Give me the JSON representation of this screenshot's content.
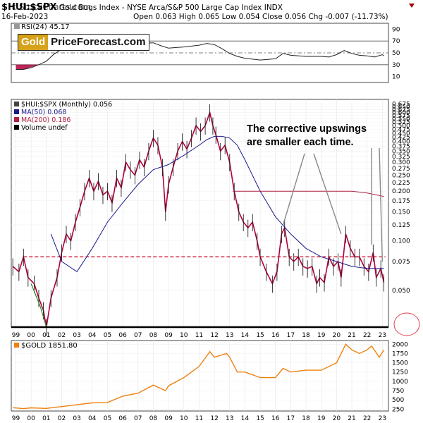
{
  "watermark_top": "©StockCharts.com",
  "header": {
    "symbol": "$HUI:$SPX",
    "description": "Gold Bugs Index - NYSE Arca/S&P 500 Large Cap Index  INDX",
    "date": "16-Feb-2023",
    "ohlc": "Open 0.063  High 0.065  Low 0.054  Close 0.056  Chg -0.007 (-11.73%)"
  },
  "logo": {
    "gold": "Gold",
    "rest": "PriceForecast.com"
  },
  "annotation": {
    "line1": "The corrective upswings",
    "line2": "are smaller each time."
  },
  "colors": {
    "price": "#b0003a",
    "ma50": "#1a1a8c",
    "ma200": "#b02040",
    "rsi": "#222222",
    "gold": "#ef7f0f",
    "support": "#c8102e",
    "circle": "#e04050"
  },
  "chart_data": [
    {
      "type": "line",
      "panel": "RSI",
      "legend": "RSI(24) 45.17",
      "y_ticks": [
        10,
        30,
        50,
        70,
        90
      ],
      "ylim": [
        0,
        100
      ],
      "reference_lines": [
        30,
        50,
        70
      ],
      "x": [
        1999.0,
        1999.5,
        2000.0,
        2000.5,
        2001.0,
        2001.5,
        2002.0,
        2002.5,
        2003.0,
        2004.0,
        2005.0,
        2006.0,
        2007.0,
        2008.0,
        2008.5,
        2009.0,
        2010.0,
        2011.0,
        2011.5,
        2012.0,
        2012.5,
        2013.0,
        2013.5,
        2014.0,
        2015.0,
        2016.0,
        2016.5,
        2017.0,
        2018.0,
        2019.0,
        2019.5,
        2020.0,
        2020.5,
        2021.0,
        2021.5,
        2022.0,
        2022.5,
        2023.0,
        2023.1
      ],
      "values": [
        22,
        22,
        25,
        30,
        36,
        48,
        56,
        60,
        63,
        64,
        62,
        64,
        66,
        67,
        62,
        58,
        60,
        63,
        66,
        64,
        57,
        49,
        44,
        41,
        38,
        40,
        49,
        46,
        44,
        44,
        43,
        47,
        54,
        49,
        46,
        45,
        43,
        47,
        45
      ]
    },
    {
      "type": "line",
      "panel": "main",
      "title": "$HUI:$SPX (Monthly) 0.056",
      "yscale": "log",
      "ylim": [
        0.03,
        0.72
      ],
      "y_ticks": [
        0.05,
        0.075,
        0.1,
        0.125,
        0.15,
        0.175,
        0.2,
        0.225,
        0.25,
        0.275,
        0.3,
        0.325,
        0.35,
        0.375,
        0.4,
        0.425,
        0.45,
        0.475,
        0.5,
        0.525,
        0.55,
        0.575,
        0.6,
        0.625,
        0.65,
        0.675
      ],
      "x_ticks": [
        "99",
        "00",
        "01",
        "02",
        "03",
        "04",
        "05",
        "06",
        "07",
        "08",
        "09",
        "10",
        "11",
        "12",
        "13",
        "14",
        "15",
        "16",
        "17",
        "18",
        "19",
        "20",
        "21",
        "22",
        "23"
      ],
      "xlim": [
        1998.7,
        2023.4
      ],
      "legend": [
        "$HUI:$SPX (Monthly) 0.056",
        "MA(50) 0.068",
        "MA(200) 0.186",
        "Volume undef"
      ],
      "series": [
        {
          "name": "$HUI:$SPX",
          "x": [
            1998.8,
            1999.2,
            1999.5,
            1999.8,
            2000.2,
            2000.5,
            2000.8,
            2001.0,
            2001.3,
            2001.7,
            2002.0,
            2002.3,
            2002.6,
            2002.9,
            2003.2,
            2003.5,
            2003.8,
            2004.1,
            2004.4,
            2004.7,
            2005.0,
            2005.3,
            2005.6,
            2005.9,
            2006.2,
            2006.5,
            2006.8,
            2007.1,
            2007.4,
            2007.7,
            2008.0,
            2008.3,
            2008.6,
            2008.8,
            2009.0,
            2009.3,
            2009.6,
            2009.9,
            2010.2,
            2010.5,
            2010.8,
            2011.1,
            2011.4,
            2011.7,
            2011.9,
            2012.1,
            2012.4,
            2012.7,
            2013.0,
            2013.3,
            2013.6,
            2013.9,
            2014.2,
            2014.5,
            2014.8,
            2015.0,
            2015.4,
            2015.8,
            2016.1,
            2016.4,
            2016.6,
            2016.9,
            2017.2,
            2017.5,
            2017.8,
            2018.1,
            2018.4,
            2018.7,
            2018.9,
            2019.2,
            2019.5,
            2019.8,
            2020.1,
            2020.3,
            2020.6,
            2020.9,
            2021.2,
            2021.5,
            2021.8,
            2022.1,
            2022.4,
            2022.6,
            2022.9,
            2023.1
          ],
          "values": [
            0.07,
            0.065,
            0.08,
            0.06,
            0.055,
            0.045,
            0.038,
            0.03,
            0.045,
            0.06,
            0.085,
            0.11,
            0.1,
            0.13,
            0.16,
            0.2,
            0.24,
            0.2,
            0.23,
            0.19,
            0.2,
            0.17,
            0.24,
            0.21,
            0.3,
            0.27,
            0.25,
            0.31,
            0.28,
            0.35,
            0.42,
            0.38,
            0.28,
            0.15,
            0.22,
            0.28,
            0.35,
            0.4,
            0.36,
            0.42,
            0.5,
            0.46,
            0.5,
            0.6,
            0.5,
            0.44,
            0.35,
            0.38,
            0.3,
            0.2,
            0.15,
            0.13,
            0.12,
            0.13,
            0.1,
            0.08,
            0.065,
            0.055,
            0.065,
            0.11,
            0.12,
            0.08,
            0.075,
            0.08,
            0.07,
            0.068,
            0.07,
            0.055,
            0.06,
            0.056,
            0.08,
            0.07,
            0.075,
            0.06,
            0.11,
            0.09,
            0.08,
            0.08,
            0.07,
            0.065,
            0.085,
            0.06,
            0.068,
            0.056
          ]
        },
        {
          "name": "MA(50)",
          "x": [
            2001.3,
            2002.0,
            2003.0,
            2004.0,
            2005.0,
            2006.0,
            2007.0,
            2008.0,
            2009.0,
            2010.0,
            2011.0,
            2011.5,
            2012.0,
            2012.5,
            2013.0,
            2013.5,
            2014.0,
            2015.0,
            2016.0,
            2017.0,
            2018.0,
            2019.0,
            2020.0,
            2021.0,
            2022.0,
            2023.1
          ],
          "values": [
            0.11,
            0.075,
            0.065,
            0.09,
            0.13,
            0.17,
            0.22,
            0.27,
            0.29,
            0.33,
            0.38,
            0.41,
            0.43,
            0.43,
            0.42,
            0.38,
            0.31,
            0.2,
            0.14,
            0.11,
            0.09,
            0.08,
            0.075,
            0.07,
            0.068,
            0.068
          ]
        },
        {
          "name": "MA(200)",
          "x": [
            2013.2,
            2014.0,
            2015.0,
            2016.0,
            2017.0,
            2018.0,
            2019.0,
            2020.0,
            2021.0,
            2022.0,
            2023.1
          ],
          "values": [
            0.2,
            0.2,
            0.2,
            0.2,
            0.2,
            0.2,
            0.2,
            0.2,
            0.2,
            0.195,
            0.186
          ]
        }
      ],
      "reference_lines": [
        {
          "y": 0.08,
          "style": "dashed"
        }
      ]
    },
    {
      "type": "line",
      "panel": "gold",
      "title": "$GOLD 1851.80",
      "y_ticks": [
        250,
        500,
        750,
        1000,
        1250,
        1500,
        1750,
        2000
      ],
      "ylim": [
        200,
        2100
      ],
      "series": [
        {
          "name": "$GOLD",
          "x": [
            1998.8,
            1999.5,
            2000.0,
            2001.0,
            2002.0,
            2003.0,
            2004.0,
            2005.0,
            2006.0,
            2007.0,
            2008.0,
            2008.8,
            2009.0,
            2010.0,
            2011.0,
            2011.7,
            2012.0,
            2012.8,
            2013.0,
            2013.5,
            2014.0,
            2015.0,
            2016.0,
            2016.5,
            2017.0,
            2018.0,
            2019.0,
            2020.0,
            2020.6,
            2021.0,
            2021.5,
            2022.0,
            2022.3,
            2022.8,
            2023.1
          ],
          "values": [
            290,
            265,
            285,
            270,
            320,
            370,
            420,
            430,
            600,
            680,
            900,
            750,
            880,
            1100,
            1400,
            1800,
            1650,
            1750,
            1650,
            1250,
            1250,
            1100,
            1100,
            1350,
            1250,
            1300,
            1300,
            1500,
            2000,
            1850,
            1750,
            1850,
            1950,
            1650,
            1850
          ]
        }
      ]
    }
  ]
}
